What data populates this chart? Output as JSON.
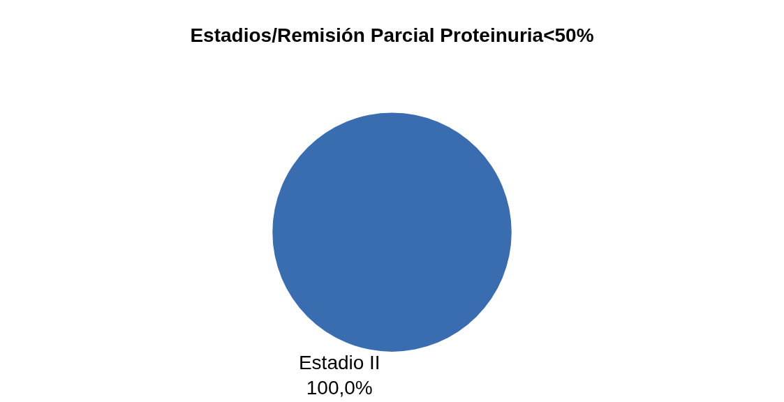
{
  "chart_data": {
    "type": "pie",
    "title": "Estadios/Remisión Parcial Proteinuria<50%",
    "categories": [
      "Estadio II"
    ],
    "values": [
      100
    ],
    "colors": [
      "#3a6db0"
    ],
    "value_labels": [
      "100,0%"
    ],
    "legend": false
  }
}
